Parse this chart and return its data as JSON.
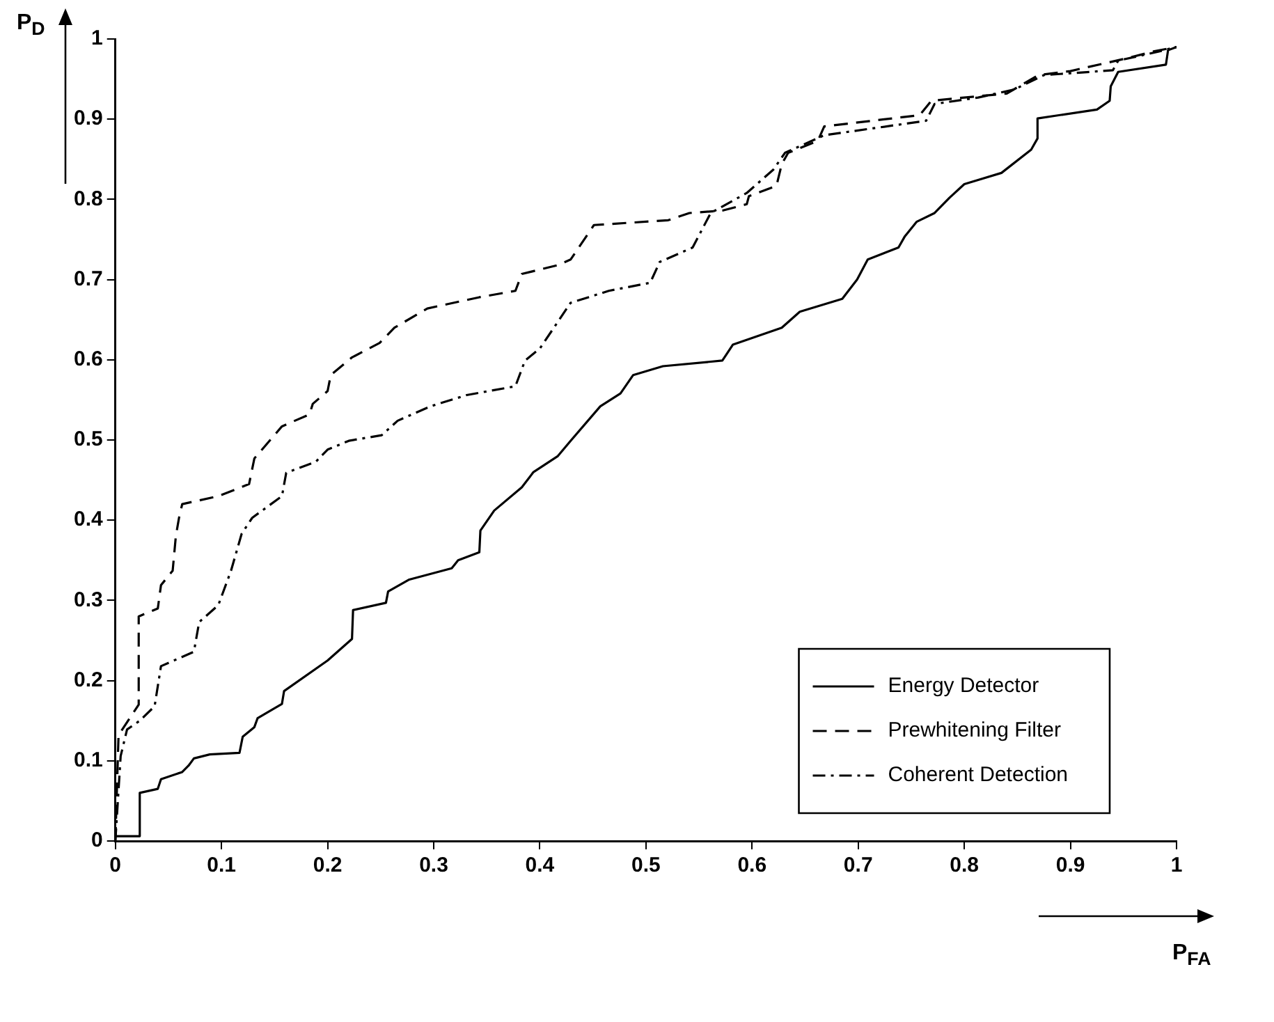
{
  "chart_data": {
    "type": "line",
    "xlabel": "P$_{FA}$",
    "ylabel": "P$_{D}$",
    "xlim": [
      0,
      1
    ],
    "ylim": [
      0,
      1
    ],
    "xticks": [
      0,
      0.1,
      0.2,
      0.3,
      0.4,
      0.5,
      0.6,
      0.7,
      0.8,
      0.9,
      1
    ],
    "yticks": [
      0,
      0.1,
      0.2,
      0.3,
      0.4,
      0.5,
      0.6,
      0.7,
      0.8,
      0.9,
      1
    ],
    "grid": false,
    "legend": "bottom right",
    "marker": "none",
    "series": [
      {
        "name": "Energy Detector",
        "color": "#000000",
        "line_style": "solid",
        "x": [
          0,
          0.023,
          0.023,
          0.04,
          0.043,
          0.063,
          0.069,
          0.074,
          0.089,
          0.117,
          0.12,
          0.131,
          0.134,
          0.157,
          0.159,
          0.2,
          0.223,
          0.224,
          0.255,
          0.257,
          0.277,
          0.317,
          0.323,
          0.343,
          0.344,
          0.357,
          0.383,
          0.394,
          0.417,
          0.429,
          0.457,
          0.476,
          0.488,
          0.516,
          0.572,
          0.582,
          0.628,
          0.645,
          0.685,
          0.699,
          0.709,
          0.738,
          0.744,
          0.755,
          0.772,
          0.786,
          0.8,
          0.835,
          0.863,
          0.869,
          0.869,
          0.925,
          0.937,
          0.938,
          0.945,
          0.99,
          0.992,
          1
        ],
        "values": [
          0.006,
          0.006,
          0.06,
          0.065,
          0.077,
          0.086,
          0.094,
          0.103,
          0.108,
          0.11,
          0.13,
          0.142,
          0.153,
          0.171,
          0.187,
          0.225,
          0.252,
          0.288,
          0.297,
          0.311,
          0.326,
          0.34,
          0.35,
          0.36,
          0.387,
          0.412,
          0.441,
          0.46,
          0.48,
          0.499,
          0.542,
          0.558,
          0.581,
          0.592,
          0.599,
          0.619,
          0.64,
          0.66,
          0.676,
          0.7,
          0.725,
          0.74,
          0.754,
          0.772,
          0.783,
          0.802,
          0.819,
          0.833,
          0.862,
          0.876,
          0.901,
          0.912,
          0.923,
          0.941,
          0.959,
          0.968,
          0.986,
          0.99
        ]
      },
      {
        "name": "Prewhitening Filter",
        "color": "#000000",
        "line_style": "dashed",
        "x": [
          0,
          0.003,
          0.022,
          0.022,
          0.04,
          0.043,
          0.054,
          0.057,
          0.06,
          0.063,
          0.097,
          0.126,
          0.131,
          0.157,
          0.183,
          0.186,
          0.2,
          0.203,
          0.223,
          0.249,
          0.263,
          0.294,
          0.343,
          0.377,
          0.383,
          0.417,
          0.429,
          0.451,
          0.521,
          0.541,
          0.572,
          0.595,
          0.597,
          0.623,
          0.628,
          0.634,
          0.662,
          0.668,
          0.758,
          0.769,
          0.8,
          0.84,
          0.87,
          0.9,
          0.95,
          0.98,
          1
        ],
        "values": [
          0,
          0.132,
          0.17,
          0.28,
          0.29,
          0.319,
          0.337,
          0.38,
          0.403,
          0.42,
          0.43,
          0.445,
          0.477,
          0.517,
          0.532,
          0.545,
          0.561,
          0.581,
          0.603,
          0.621,
          0.64,
          0.664,
          0.678,
          0.686,
          0.707,
          0.718,
          0.725,
          0.768,
          0.774,
          0.783,
          0.786,
          0.794,
          0.804,
          0.817,
          0.844,
          0.858,
          0.873,
          0.891,
          0.905,
          0.923,
          0.927,
          0.932,
          0.955,
          0.96,
          0.975,
          0.985,
          0.99
        ]
      },
      {
        "name": "Coherent Detection",
        "color": "#000000",
        "line_style": "dashdot",
        "x": [
          0,
          0.005,
          0.011,
          0.023,
          0.037,
          0.043,
          0.074,
          0.079,
          0.097,
          0.109,
          0.119,
          0.129,
          0.157,
          0.161,
          0.189,
          0.2,
          0.22,
          0.251,
          0.266,
          0.297,
          0.331,
          0.377,
          0.386,
          0.4,
          0.429,
          0.465,
          0.504,
          0.513,
          0.544,
          0.561,
          0.595,
          0.62,
          0.631,
          0.668,
          0.764,
          0.772,
          0.813,
          0.847,
          0.875,
          0.94,
          0.945,
          0.982,
          1
        ],
        "values": [
          0,
          0.106,
          0.139,
          0.15,
          0.168,
          0.218,
          0.236,
          0.273,
          0.294,
          0.337,
          0.383,
          0.403,
          0.43,
          0.459,
          0.473,
          0.488,
          0.499,
          0.506,
          0.524,
          0.542,
          0.556,
          0.567,
          0.599,
          0.614,
          0.671,
          0.686,
          0.696,
          0.722,
          0.74,
          0.783,
          0.808,
          0.837,
          0.858,
          0.88,
          0.898,
          0.919,
          0.927,
          0.937,
          0.955,
          0.961,
          0.973,
          0.984,
          0.99
        ]
      }
    ]
  }
}
